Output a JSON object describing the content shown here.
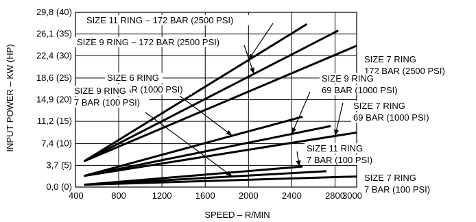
{
  "chart_data": {
    "type": "line",
    "xlabel": "SPEED – R/MIN",
    "ylabel": "INPUT POWER – KW (HP)",
    "xlim": [
      400,
      3000
    ],
    "ylim": [
      0,
      29.8
    ],
    "x_ticks": [
      400,
      800,
      1200,
      1600,
      2000,
      2400,
      2800,
      3000
    ],
    "x_tick_labels": [
      "400",
      "800",
      "1200",
      "1600",
      "2000",
      "2400",
      "2800",
      "3000"
    ],
    "y_ticks": [
      0,
      3.7,
      7.4,
      11.2,
      14.9,
      18.6,
      22.4,
      26.1,
      29.8
    ],
    "y_tick_labels": [
      "0,0 (0)",
      "3,7 (5)",
      "7,4 (10)",
      "11,2 (15)",
      "14,9 (20)",
      "18,6 (25)",
      "22,4 (30)",
      "26,1 (35)",
      "29,8 (40)"
    ],
    "grid": true,
    "series": [
      {
        "label_lines": [
          "SIZE 11 RING – 172 BAR (2500 PSI)"
        ],
        "x": [
          480,
          2540
        ],
        "y": [
          4.4,
          27.8
        ]
      },
      {
        "label_lines": [
          "SIZE 9 RING – 172 BAR (2500 PSI)"
        ],
        "x": [
          480,
          2830
        ],
        "y": [
          4.4,
          26.7
        ]
      },
      {
        "label_lines": [
          "SIZE 7 RING",
          "172 BAR (2500 PSI)"
        ],
        "x": [
          480,
          3000
        ],
        "y": [
          4.4,
          24.1
        ]
      },
      {
        "label_lines": [
          "SIZE 6 RING",
          "69 BAR (1000 PSI)"
        ],
        "x": [
          480,
          2500
        ],
        "y": [
          1.9,
          12.0
        ]
      },
      {
        "label_lines": [
          "SIZE 9 RING",
          "69 BAR (1000 PSI)"
        ],
        "x": [
          480,
          2760
        ],
        "y": [
          1.9,
          10.4
        ]
      },
      {
        "label_lines": [
          "SIZE 7 RING",
          "69 BAR (1000 PSI)"
        ],
        "x": [
          480,
          3000
        ],
        "y": [
          1.9,
          9.3
        ]
      },
      {
        "label_lines": [
          "SIZE 9 RING",
          "7 BAR (100 PSI)"
        ],
        "x": [
          480,
          2720
        ],
        "y": [
          0.4,
          2.7
        ]
      },
      {
        "label_lines": [
          "SIZE 11 RING",
          "7 BAR (100 PSI)"
        ],
        "x": [
          480,
          2500
        ],
        "y": [
          0.4,
          3.5
        ]
      },
      {
        "label_lines": [
          "SIZE 7 RING",
          "7 BAR (100 PSI)"
        ],
        "x": [
          480,
          3000
        ],
        "y": [
          0.4,
          1.8
        ]
      }
    ]
  }
}
